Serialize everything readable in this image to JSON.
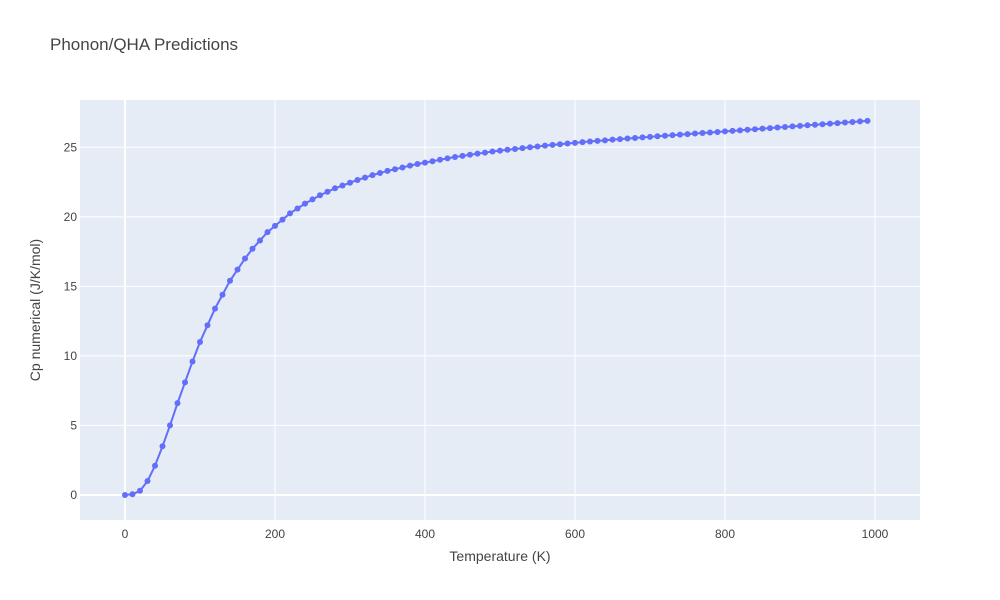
{
  "chart_data": {
    "type": "line",
    "title": "Phonon/QHA Predictions",
    "xlabel": "Temperature (K)",
    "ylabel": "Cp numerical (J/K/mol)",
    "xlim": [
      -60,
      1060
    ],
    "ylim": [
      -1.8,
      28.4
    ],
    "xticks": [
      0,
      200,
      400,
      600,
      800,
      1000
    ],
    "yticks": [
      0,
      5,
      10,
      15,
      20,
      25
    ],
    "grid": true,
    "legend": "none",
    "colors": {
      "plot_bg": "#e5ecf6",
      "grid": "#ffffff",
      "series": "#636efa"
    },
    "series": [
      {
        "mode": "lines+markers",
        "x": [
          0,
          10,
          20,
          30,
          40,
          50,
          60,
          70,
          80,
          90,
          100,
          110,
          120,
          130,
          140,
          150,
          160,
          170,
          180,
          190,
          200,
          210,
          220,
          230,
          240,
          250,
          260,
          270,
          280,
          290,
          300,
          310,
          320,
          330,
          340,
          350,
          360,
          370,
          380,
          390,
          400,
          410,
          420,
          430,
          440,
          450,
          460,
          470,
          480,
          490,
          500,
          510,
          520,
          530,
          540,
          550,
          560,
          570,
          580,
          590,
          600,
          610,
          620,
          630,
          640,
          650,
          660,
          670,
          680,
          690,
          700,
          710,
          720,
          730,
          740,
          750,
          760,
          770,
          780,
          790,
          800,
          810,
          820,
          830,
          840,
          850,
          860,
          870,
          880,
          890,
          900,
          910,
          920,
          930,
          940,
          950,
          960,
          970,
          980,
          990
        ],
        "y": [
          0,
          0.05,
          0.3,
          1.0,
          2.1,
          3.5,
          5.0,
          6.6,
          8.1,
          9.6,
          11.0,
          12.2,
          13.4,
          14.4,
          15.4,
          16.2,
          17.0,
          17.7,
          18.3,
          18.9,
          19.35,
          19.8,
          20.25,
          20.6,
          20.95,
          21.25,
          21.55,
          21.8,
          22.05,
          22.25,
          22.45,
          22.65,
          22.82,
          23.0,
          23.15,
          23.3,
          23.42,
          23.55,
          23.68,
          23.8,
          23.9,
          24.0,
          24.1,
          24.2,
          24.3,
          24.38,
          24.46,
          24.54,
          24.62,
          24.7,
          24.76,
          24.82,
          24.88,
          24.94,
          25.0,
          25.06,
          25.12,
          25.17,
          25.22,
          25.27,
          25.32,
          25.37,
          25.42,
          25.46,
          25.5,
          25.55,
          25.59,
          25.63,
          25.67,
          25.71,
          25.75,
          25.79,
          25.83,
          25.87,
          25.91,
          25.95,
          25.99,
          26.03,
          26.06,
          26.1,
          26.14,
          26.18,
          26.22,
          26.26,
          26.3,
          26.34,
          26.38,
          26.42,
          26.46,
          26.5,
          26.54,
          26.58,
          26.62,
          26.66,
          26.7,
          26.74,
          26.78,
          26.82,
          26.86,
          26.9
        ]
      }
    ]
  }
}
